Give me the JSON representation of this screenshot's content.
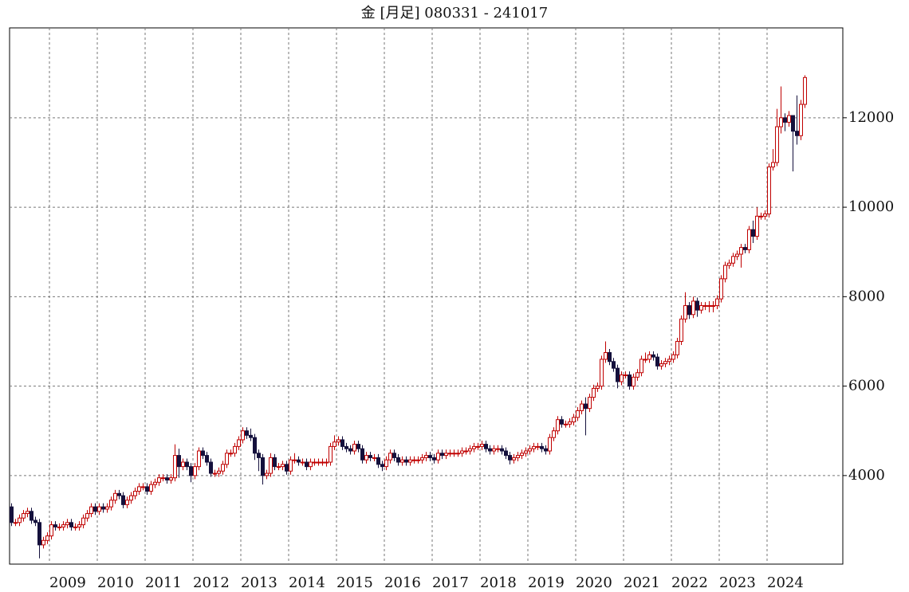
{
  "chart_data": {
    "type": "candlestick",
    "title": "金 [月足] 080331 - 241017",
    "up_color": "#c00000",
    "down_color": "#14103c",
    "grid": true,
    "ylim": [
      2020,
      14010
    ],
    "yticks": [
      4000,
      6000,
      8000,
      10000,
      12000
    ],
    "categories": [
      null,
      null,
      null,
      null,
      null,
      null,
      null,
      null,
      null,
      null,
      "2009",
      null,
      null,
      null,
      null,
      null,
      null,
      null,
      null,
      null,
      null,
      null,
      "2010",
      null,
      null,
      null,
      null,
      null,
      null,
      null,
      null,
      null,
      null,
      null,
      "2011",
      null,
      null,
      null,
      null,
      null,
      null,
      null,
      null,
      null,
      null,
      null,
      "2012",
      null,
      null,
      null,
      null,
      null,
      null,
      null,
      null,
      null,
      null,
      null,
      "2013",
      null,
      null,
      null,
      null,
      null,
      null,
      null,
      null,
      null,
      null,
      null,
      "2014",
      null,
      null,
      null,
      null,
      null,
      null,
      null,
      null,
      null,
      null,
      null,
      "2015",
      null,
      null,
      null,
      null,
      null,
      null,
      null,
      null,
      null,
      null,
      null,
      "2016",
      null,
      null,
      null,
      null,
      null,
      null,
      null,
      null,
      null,
      null,
      null,
      "2017",
      null,
      null,
      null,
      null,
      null,
      null,
      null,
      null,
      null,
      null,
      null,
      "2018",
      null,
      null,
      null,
      null,
      null,
      null,
      null,
      null,
      null,
      null,
      null,
      "2019",
      null,
      null,
      null,
      null,
      null,
      null,
      null,
      null,
      null,
      null,
      null,
      "2020",
      null,
      null,
      null,
      null,
      null,
      null,
      null,
      null,
      null,
      null,
      null,
      "2021",
      null,
      null,
      null,
      null,
      null,
      null,
      null,
      null,
      null,
      null,
      null,
      "2022",
      null,
      null,
      null,
      null,
      null,
      null,
      null,
      null,
      null,
      null,
      null,
      "2023",
      null,
      null,
      null,
      null,
      null,
      null,
      null,
      null,
      null,
      null,
      null,
      "2024",
      null,
      null,
      null,
      null,
      null,
      null,
      null,
      null,
      null
    ],
    "open": [
      3300,
      2950,
      2950,
      3050,
      3150,
      3200,
      3000,
      2950,
      2450,
      2550,
      2650,
      2900,
      2850,
      2850,
      2900,
      2950,
      2850,
      2850,
      2900,
      3050,
      3150,
      3300,
      3200,
      3300,
      3250,
      3300,
      3450,
      3600,
      3550,
      3350,
      3450,
      3550,
      3650,
      3750,
      3750,
      3650,
      3800,
      3850,
      3950,
      3950,
      3900,
      3950,
      4450,
      4200,
      4300,
      4200,
      4000,
      4200,
      4550,
      4450,
      4300,
      4050,
      4050,
      4100,
      4250,
      4500,
      4500,
      4650,
      4800,
      5000,
      4900,
      4850,
      4500,
      4400,
      4000,
      4050,
      4400,
      4200,
      4200,
      4250,
      4100,
      4350,
      4350,
      4300,
      4300,
      4200,
      4300,
      4300,
      4300,
      4300,
      4300,
      4650,
      4750,
      4800,
      4650,
      4600,
      4550,
      4700,
      4600,
      4350,
      4450,
      4400,
      4400,
      4250,
      4200,
      4350,
      4500,
      4400,
      4300,
      4350,
      4300,
      4350,
      4350,
      4350,
      4400,
      4450,
      4400,
      4350,
      4500,
      4450,
      4500,
      4500,
      4500,
      4500,
      4550,
      4550,
      4600,
      4650,
      4650,
      4700,
      4600,
      4550,
      4600,
      4600,
      4550,
      4450,
      4350,
      4400,
      4450,
      4500,
      4550,
      4600,
      4650,
      4650,
      4600,
      4550,
      4850,
      5000,
      5250,
      5150,
      5150,
      5200,
      5300,
      5450,
      5600,
      5500,
      5750,
      5950,
      6000,
      6600,
      6750,
      6550,
      6400,
      6100,
      6250,
      6250,
      6000,
      6200,
      6300,
      6600,
      6600,
      6700,
      6650,
      6450,
      6500,
      6550,
      6600,
      6700,
      7000,
      7500,
      7800,
      7600,
      7900,
      7700,
      7800,
      7800,
      7800,
      7800,
      7950,
      8400,
      8700,
      8750,
      8900,
      8950,
      9100,
      9050,
      9500,
      9350,
      9800,
      9800,
      9850,
      10900,
      11000,
      11800,
      12000,
      11900,
      12050,
      11700,
      11600,
      12300
    ],
    "high": [
      3380,
      3030,
      3130,
      3230,
      3280,
      3280,
      3080,
      3030,
      2630,
      2730,
      2980,
      2980,
      2930,
      2980,
      3030,
      3030,
      2930,
      2980,
      3130,
      3230,
      3380,
      3380,
      3380,
      3380,
      3380,
      3530,
      3680,
      3680,
      3630,
      3530,
      3630,
      3730,
      3830,
      3830,
      3830,
      3880,
      3930,
      4030,
      4030,
      4030,
      4030,
      4700,
      4600,
      4380,
      4380,
      4280,
      4280,
      4630,
      4630,
      4530,
      4380,
      4130,
      4180,
      4330,
      4580,
      4580,
      4730,
      4880,
      5080,
      5080,
      5050,
      4930,
      4580,
      4480,
      4130,
      4500,
      4480,
      4280,
      4330,
      4330,
      4430,
      4500,
      4430,
      4380,
      4380,
      4380,
      4380,
      4380,
      4380,
      4380,
      4730,
      4900,
      4880,
      4880,
      4730,
      4680,
      4780,
      4780,
      4680,
      4530,
      4530,
      4480,
      4480,
      4330,
      4430,
      4580,
      4580,
      4480,
      4430,
      4430,
      4430,
      4430,
      4430,
      4480,
      4530,
      4530,
      4480,
      4580,
      4580,
      4580,
      4580,
      4580,
      4580,
      4630,
      4630,
      4680,
      4730,
      4730,
      4780,
      4780,
      4680,
      4680,
      4680,
      4680,
      4630,
      4530,
      4480,
      4530,
      4580,
      4630,
      4680,
      4730,
      4730,
      4730,
      4680,
      4930,
      5080,
      5330,
      5330,
      5230,
      5280,
      5380,
      5530,
      5680,
      5750,
      5830,
      6030,
      6080,
      6680,
      7000,
      6830,
      6630,
      6480,
      6330,
      6330,
      6330,
      6280,
      6380,
      6680,
      6750,
      6780,
      6780,
      6730,
      6580,
      6630,
      6680,
      6780,
      7080,
      7580,
      8100,
      7880,
      8000,
      7980,
      7880,
      7880,
      7900,
      7900,
      8030,
      8480,
      8780,
      8830,
      8980,
      9030,
      9180,
      9180,
      9580,
      9700,
      10000,
      9880,
      9930,
      10980,
      11300,
      12200,
      12700,
      12100,
      12150,
      12000,
      12500,
      12400,
      12950
    ],
    "low": [
      2870,
      2870,
      2870,
      2970,
      3070,
      2920,
      2870,
      2150,
      2370,
      2470,
      2570,
      2770,
      2770,
      2770,
      2820,
      2770,
      2770,
      2770,
      2820,
      2970,
      3070,
      3120,
      3120,
      3170,
      3170,
      3220,
      3370,
      3470,
      3270,
      3270,
      3370,
      3470,
      3570,
      3670,
      3570,
      3570,
      3720,
      3770,
      3870,
      3820,
      3820,
      3870,
      3950,
      4120,
      4120,
      3850,
      3920,
      4120,
      4370,
      4220,
      3970,
      3970,
      3970,
      4020,
      4170,
      4420,
      4420,
      4570,
      4720,
      4820,
      4770,
      4350,
      4100,
      3800,
      3920,
      3970,
      4120,
      4120,
      4120,
      4020,
      4020,
      4270,
      4220,
      4220,
      4120,
      4120,
      4220,
      4220,
      4220,
      4200,
      4220,
      4570,
      4670,
      4570,
      4520,
      4470,
      4470,
      4520,
      4270,
      4270,
      4320,
      4320,
      4170,
      4100,
      4120,
      4270,
      4320,
      4220,
      4220,
      4220,
      4220,
      4270,
      4270,
      4270,
      4320,
      4320,
      4270,
      4270,
      4370,
      4370,
      4420,
      4420,
      4420,
      4420,
      4470,
      4470,
      4520,
      4570,
      4570,
      4520,
      4470,
      4470,
      4520,
      4470,
      4370,
      4250,
      4270,
      4320,
      4370,
      4420,
      4470,
      4520,
      4570,
      4520,
      4470,
      4470,
      4770,
      4920,
      5070,
      5070,
      5070,
      5120,
      5220,
      5370,
      4900,
      5420,
      5670,
      5870,
      5920,
      6520,
      6470,
      6320,
      5950,
      6020,
      6170,
      5920,
      5920,
      6120,
      6220,
      6520,
      6520,
      6570,
      6370,
      6370,
      6420,
      6470,
      6520,
      6620,
      6920,
      7420,
      7500,
      7520,
      7550,
      7620,
      7700,
      7650,
      7650,
      7720,
      7870,
      8320,
      8620,
      8670,
      8820,
      8650,
      8970,
      8970,
      9200,
      9270,
      9720,
      9720,
      9770,
      10820,
      10920,
      11650,
      11700,
      11800,
      10800,
      11400,
      11500,
      12220
    ],
    "close": [
      2950,
      2950,
      3050,
      3150,
      3200,
      3000,
      2950,
      2450,
      2550,
      2650,
      2900,
      2850,
      2850,
      2900,
      2950,
      2850,
      2850,
      2900,
      3050,
      3150,
      3300,
      3200,
      3300,
      3250,
      3300,
      3450,
      3600,
      3550,
      3350,
      3450,
      3550,
      3650,
      3750,
      3750,
      3650,
      3800,
      3850,
      3950,
      3950,
      3900,
      3950,
      4450,
      4200,
      4300,
      4200,
      4000,
      4200,
      4550,
      4450,
      4300,
      4050,
      4050,
      4100,
      4250,
      4500,
      4500,
      4650,
      4800,
      5000,
      4900,
      4850,
      4500,
      4400,
      4000,
      4050,
      4400,
      4200,
      4200,
      4250,
      4100,
      4350,
      4350,
      4300,
      4300,
      4200,
      4300,
      4300,
      4300,
      4300,
      4300,
      4650,
      4750,
      4800,
      4650,
      4600,
      4550,
      4700,
      4600,
      4350,
      4450,
      4400,
      4400,
      4250,
      4200,
      4350,
      4500,
      4400,
      4300,
      4350,
      4300,
      4350,
      4350,
      4350,
      4400,
      4450,
      4400,
      4350,
      4500,
      4450,
      4500,
      4500,
      4500,
      4500,
      4550,
      4550,
      4600,
      4650,
      4650,
      4700,
      4600,
      4550,
      4600,
      4600,
      4550,
      4450,
      4350,
      4400,
      4450,
      4500,
      4550,
      4600,
      4650,
      4650,
      4600,
      4550,
      4850,
      5000,
      5250,
      5150,
      5150,
      5200,
      5300,
      5450,
      5600,
      5500,
      5750,
      5950,
      6000,
      6600,
      6750,
      6550,
      6400,
      6100,
      6250,
      6250,
      6000,
      6200,
      6300,
      6600,
      6600,
      6700,
      6650,
      6450,
      6500,
      6550,
      6600,
      6700,
      7000,
      7500,
      7800,
      7600,
      7900,
      7700,
      7800,
      7800,
      7800,
      7800,
      7950,
      8400,
      8700,
      8750,
      8900,
      8950,
      9100,
      9050,
      9500,
      9350,
      9800,
      9800,
      9850,
      10900,
      11000,
      11800,
      12000,
      11900,
      12050,
      11700,
      11600,
      12300,
      12900
    ]
  }
}
